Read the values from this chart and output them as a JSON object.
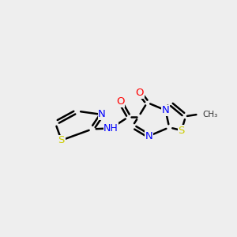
{
  "bg_color": "#eeeeee",
  "atom_colors": {
    "N": "#0000ff",
    "O": "#ff0000",
    "S": "#cccc00",
    "C": "#000000"
  },
  "bond_lw": 1.8,
  "font_size": 9.5
}
